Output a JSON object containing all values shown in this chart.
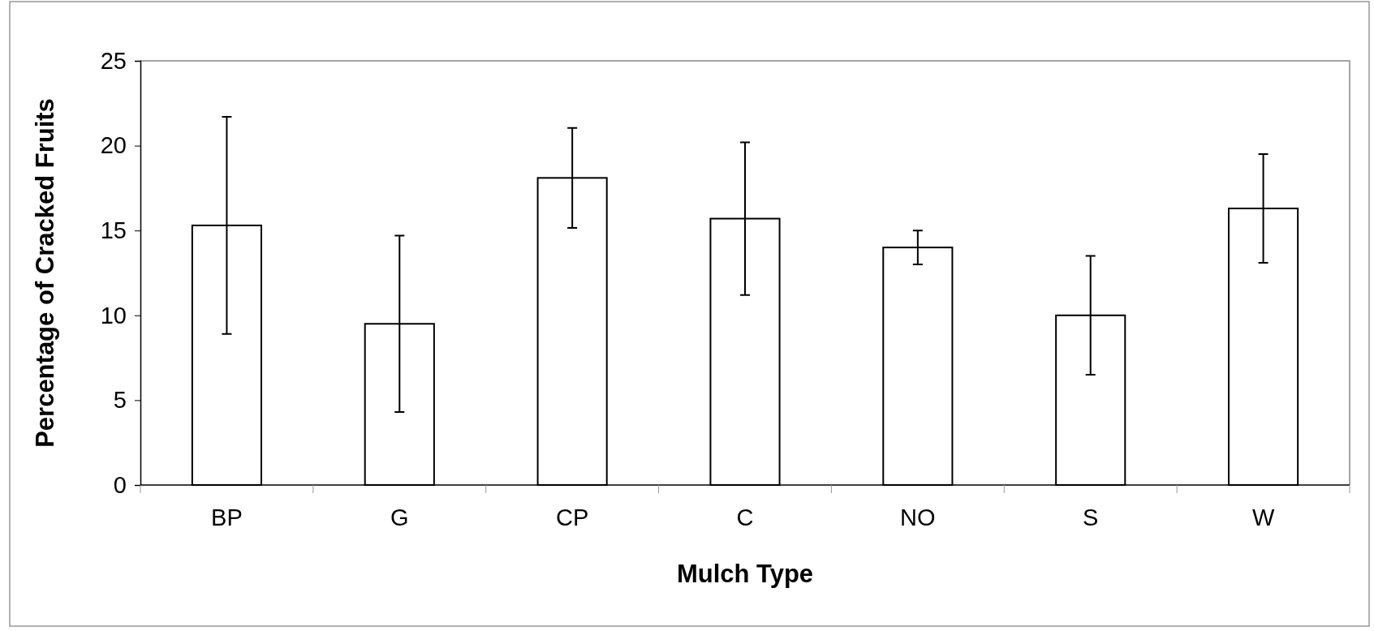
{
  "chart_data": {
    "type": "bar",
    "xlabel": "Mulch Type",
    "ylabel": "Percentage of Cracked Fruits",
    "categories": [
      "BP",
      "G",
      "CP",
      "C",
      "NO",
      "S",
      "W"
    ],
    "values": [
      15.3,
      9.5,
      18.1,
      15.7,
      14.0,
      10.0,
      16.3
    ],
    "errors": [
      6.4,
      5.2,
      2.95,
      4.5,
      1.0,
      3.5,
      3.2
    ],
    "color": "#ffffff",
    "ylim": [
      0,
      25
    ],
    "yticks": [
      0,
      5,
      10,
      15,
      20,
      25
    ],
    "grid": false
  }
}
